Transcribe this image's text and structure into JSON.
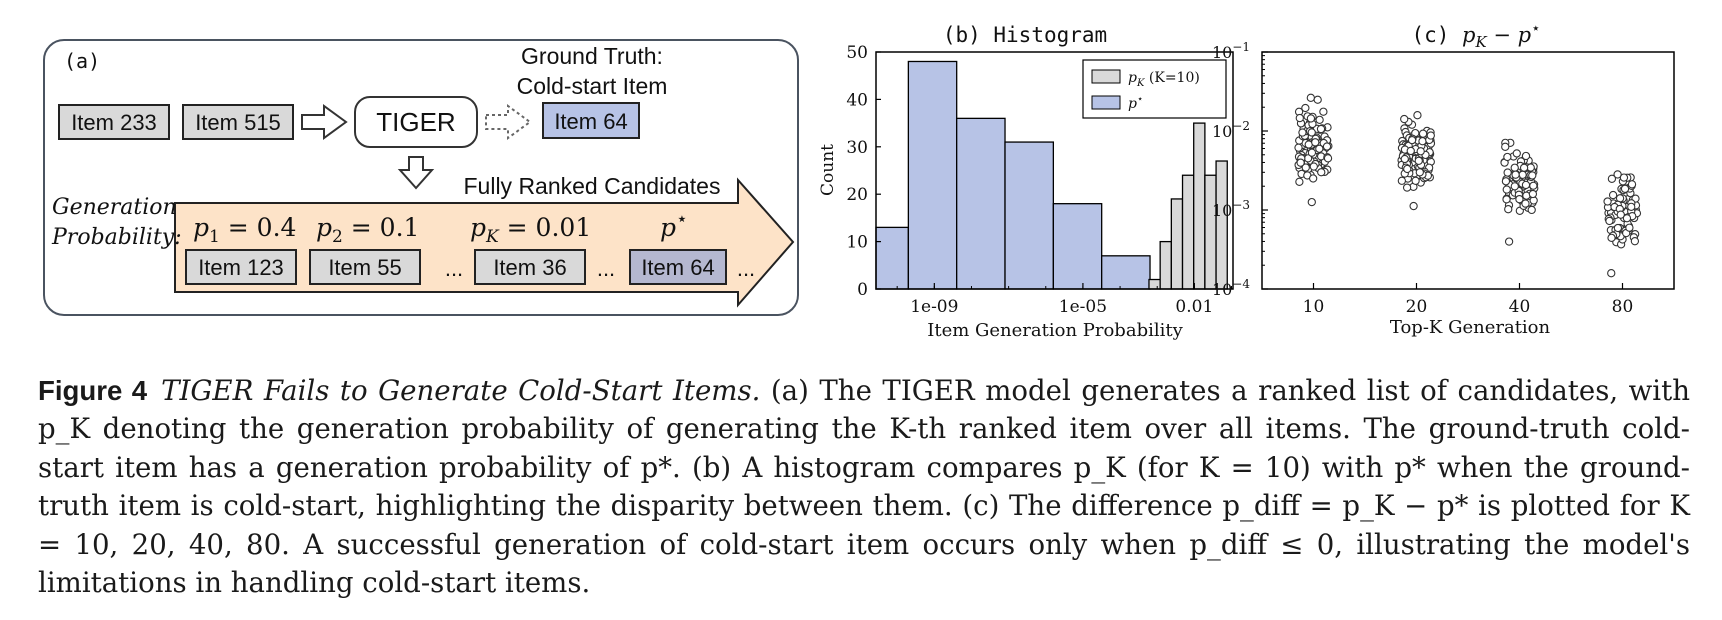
{
  "panel_a": {
    "label": "(a)",
    "ground_truth_line1": "Ground Truth:",
    "ground_truth_line2": "Cold-start Item",
    "input_item1": "Item 233",
    "input_item2": "Item 515",
    "model": "TIGER",
    "target_item": "Item 64",
    "candidates_title": "Fully Ranked Candidates",
    "gen_prob_line1": "Generation",
    "gen_prob_line2": "Probability:",
    "probs": [
      {
        "sym": "p",
        "sub": "1",
        "val": " = 0.4"
      },
      {
        "sym": "p",
        "sub": "2",
        "val": " = 0.1"
      },
      {
        "sym": "p",
        "sub": "K",
        "val": " = 0.01"
      },
      {
        "sym": "p",
        "sup": "⋆",
        "val": ""
      }
    ],
    "ranked_items": [
      "Item 123",
      "Item 55",
      "Item 36",
      "Item 64"
    ],
    "ellipsis": "..."
  },
  "colors": {
    "input_fill": "#d9d9d9",
    "target_fill": "#b7c3e6",
    "arrow_fill": "#fde3c8",
    "ranked_target_fill": "#b5b8d0",
    "bar_gray": "#d9d9d9",
    "bar_blue": "#b7c3e6"
  },
  "chart_data": [
    {
      "type": "bar",
      "title": "(b) Histogram",
      "xlabel": "Item Generation Probability",
      "ylabel": "Count",
      "x_scale": "log",
      "x_ticks": [
        "1e-09",
        "1e-05",
        "0.01"
      ],
      "y_ticks": [
        "0",
        "10",
        "20",
        "30",
        "40",
        "50"
      ],
      "ylim": [
        0,
        50
      ],
      "legend_position": "top-right",
      "series": [
        {
          "name": "p_K (K=10)",
          "legend_sym": "p",
          "legend_sub": "K",
          "legend_suffix": " (K=10)",
          "bins": [
            {
              "lo": 0.0006,
              "hi": 0.0012,
              "count": 2
            },
            {
              "lo": 0.0012,
              "hi": 0.0024,
              "count": 10
            },
            {
              "lo": 0.0024,
              "hi": 0.0048,
              "count": 19
            },
            {
              "lo": 0.0048,
              "hi": 0.0096,
              "count": 24
            },
            {
              "lo": 0.0096,
              "hi": 0.0192,
              "count": 35
            },
            {
              "lo": 0.0192,
              "hi": 0.0384,
              "count": 24
            },
            {
              "lo": 0.0384,
              "hi": 0.0768,
              "count": 27
            }
          ]
        },
        {
          "name": "p*",
          "legend_sym": "p",
          "legend_sup": "⋆",
          "bins": [
            {
              "lo": 1e-11,
              "hi": 2e-10,
              "count": 13
            },
            {
              "lo": 2e-10,
              "hi": 4e-09,
              "count": 48
            },
            {
              "lo": 4e-09,
              "hi": 8e-08,
              "count": 36
            },
            {
              "lo": 8e-08,
              "hi": 1.6e-06,
              "count": 31
            },
            {
              "lo": 1.6e-06,
              "hi": 3.2e-05,
              "count": 18
            },
            {
              "lo": 3.2e-05,
              "hi": 0.00064,
              "count": 7
            }
          ]
        }
      ]
    },
    {
      "type": "scatter",
      "title": "(c) p_K − p*",
      "title_prefix": "(c) ",
      "xlabel": "Top-K Generation",
      "ylabel": "",
      "y_scale": "log",
      "ylim": [
        0.0001,
        0.1
      ],
      "y_ticks": [
        {
          "base": "10",
          "exp": "−1"
        },
        {
          "base": "10",
          "exp": "−2"
        },
        {
          "base": "10",
          "exp": "−3"
        },
        {
          "base": "10",
          "exp": "−4"
        }
      ],
      "categories": [
        "10",
        "20",
        "40",
        "80"
      ],
      "series": [
        {
          "category": "10",
          "count": 110,
          "log_min": -2.9,
          "log_max": -1.58,
          "log_center": -2.15
        },
        {
          "category": "20",
          "count": 110,
          "log_min": -2.95,
          "log_max": -1.8,
          "log_center": -2.3
        },
        {
          "category": "40",
          "count": 90,
          "log_min": -3.4,
          "log_max": -2.15,
          "log_center": -2.6
        },
        {
          "category": "80",
          "count": 90,
          "log_min": -3.8,
          "log_max": -2.55,
          "log_center": -3.0
        }
      ]
    }
  ],
  "caption": {
    "label": "Figure 4",
    "title": "TIGER Fails to Generate Cold-Start Items.",
    "body": " (a) The TIGER model generates a ranked list of candidates, with p_K denoting the generation probability of generating the K-th ranked item over all items. The ground-truth cold-start item has a generation probability of p*. (b) A histogram compares p_K (for K = 10) with p* when the ground-truth item is cold-start, highlighting the disparity between them. (c) The difference p_diff = p_K − p* is plotted for K = 10, 20, 40, 80. A successful generation of cold-start item occurs only when p_diff ≤ 0, illustrating the model's limitations in handling cold-start items."
  }
}
